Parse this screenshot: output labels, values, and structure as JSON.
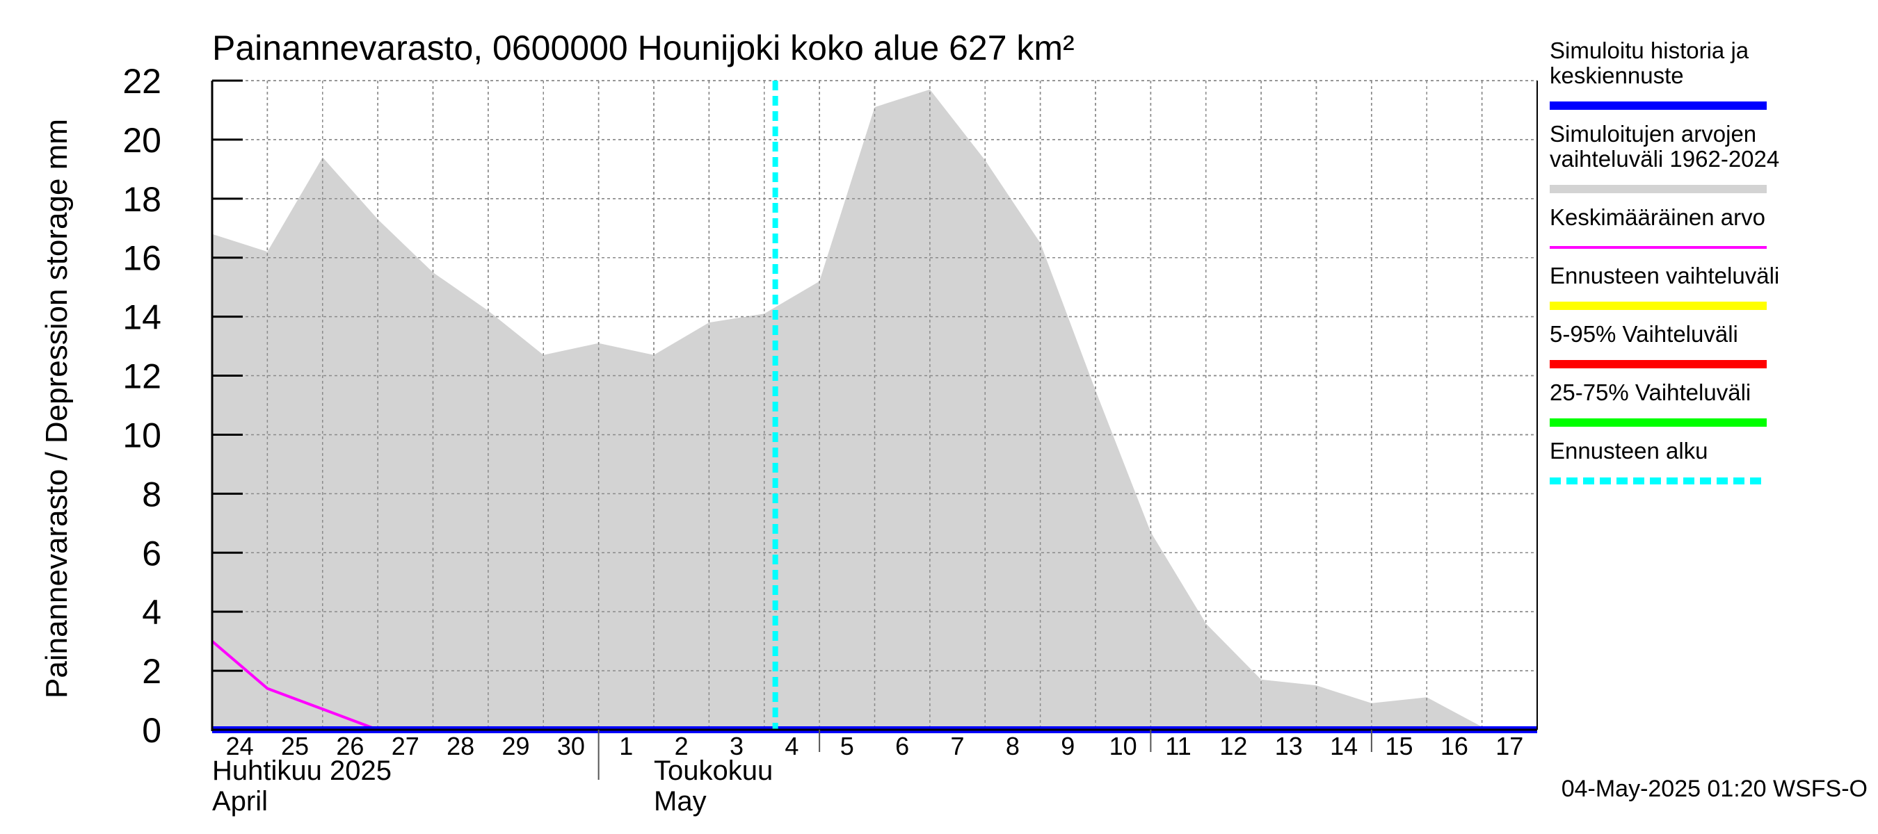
{
  "chart_data": {
    "type": "area",
    "title": "Painannevarasto, 0600000 Hounijoki koko alue 627 km²",
    "ylabel": "Painannevarasto / Depression storage    mm",
    "ylim": [
      0,
      22
    ],
    "yticks": [
      0,
      2,
      4,
      6,
      8,
      10,
      12,
      14,
      16,
      18,
      20,
      22
    ],
    "xlim": [
      0,
      24
    ],
    "xticks": [
      {
        "pos": 0,
        "label": "24"
      },
      {
        "pos": 1,
        "label": "25"
      },
      {
        "pos": 2,
        "label": "26"
      },
      {
        "pos": 3,
        "label": "27"
      },
      {
        "pos": 4,
        "label": "28"
      },
      {
        "pos": 5,
        "label": "29"
      },
      {
        "pos": 6,
        "label": "30"
      },
      {
        "pos": 7,
        "label": "1"
      },
      {
        "pos": 8,
        "label": "2"
      },
      {
        "pos": 9,
        "label": "3"
      },
      {
        "pos": 10,
        "label": "4"
      },
      {
        "pos": 11,
        "label": "5"
      },
      {
        "pos": 12,
        "label": "6"
      },
      {
        "pos": 13,
        "label": "7"
      },
      {
        "pos": 14,
        "label": "8"
      },
      {
        "pos": 15,
        "label": "9"
      },
      {
        "pos": 16,
        "label": "10"
      },
      {
        "pos": 17,
        "label": "11"
      },
      {
        "pos": 18,
        "label": "12"
      },
      {
        "pos": 19,
        "label": "13"
      },
      {
        "pos": 20,
        "label": "14"
      },
      {
        "pos": 21,
        "label": "15"
      },
      {
        "pos": 22,
        "label": "16"
      },
      {
        "pos": 23,
        "label": "17"
      }
    ],
    "month_labels": [
      {
        "pos": 0,
        "line1": "Huhtikuu  2025",
        "line2": "April"
      },
      {
        "pos": 8,
        "line1": "Toukokuu",
        "line2": "May"
      }
    ],
    "month_boundary": 7,
    "week_boundaries": [
      11,
      17,
      21
    ],
    "grid": true,
    "series": [
      {
        "name": "Simuloitujen arvojen vaihteluväli 1962-2024",
        "kind": "band",
        "color": "#d3d3d3",
        "x": [
          0,
          1,
          2,
          3,
          4,
          5,
          6,
          7,
          8,
          9,
          10,
          11,
          12,
          13,
          14,
          15,
          16,
          17,
          18,
          19,
          20,
          21,
          22,
          23,
          24
        ],
        "upper": [
          16.8,
          16.2,
          19.4,
          17.3,
          15.5,
          14.2,
          12.7,
          13.1,
          12.7,
          13.8,
          14.1,
          15.2,
          21.1,
          21.7,
          19.3,
          16.5,
          11.5,
          6.7,
          3.6,
          1.7,
          1.5,
          0.9,
          1.1,
          0.1,
          0.1
        ],
        "lower": [
          0,
          0,
          0,
          0,
          0,
          0,
          0,
          0,
          0,
          0,
          0,
          0,
          0,
          0,
          0,
          0,
          0,
          0,
          0,
          0,
          0,
          0,
          0,
          0,
          0
        ]
      },
      {
        "name": "Keskimääräinen arvo",
        "kind": "line",
        "color": "#ff00ff",
        "x": [
          0,
          1,
          2,
          3,
          4,
          24
        ],
        "values": [
          3.0,
          1.4,
          0.7,
          0.0,
          0.0,
          0.0
        ]
      },
      {
        "name": "Simuloitu historia ja keskiennuste",
        "kind": "line",
        "color": "#0000ff",
        "x": [
          0,
          3,
          24
        ],
        "values": [
          0.0,
          0.0,
          0.0
        ]
      }
    ],
    "forecast_start": 10.2,
    "legend_position": "right",
    "legend": [
      {
        "label": "Simuloitu historia ja keskiennuste",
        "color": "#0000ff",
        "style": "solid"
      },
      {
        "label": "Simuloitujen arvojen vaihteluväli 1962-2024",
        "color": "#d3d3d3",
        "style": "solid"
      },
      {
        "label": "Keskimääräinen arvo",
        "color": "#ff00ff",
        "style": "thin"
      },
      {
        "label": "Ennusteen vaihteluväli",
        "color": "#ffff00",
        "style": "solid"
      },
      {
        "label": "5-95% Vaihteluväli",
        "color": "#ff0000",
        "style": "solid"
      },
      {
        "label": "25-75% Vaihteluväli",
        "color": "#00ff00",
        "style": "solid"
      },
      {
        "label": "Ennusteen alku",
        "color": "#00ffff",
        "style": "dashed"
      }
    ],
    "footer": "04-May-2025 01:20 WSFS-O"
  }
}
